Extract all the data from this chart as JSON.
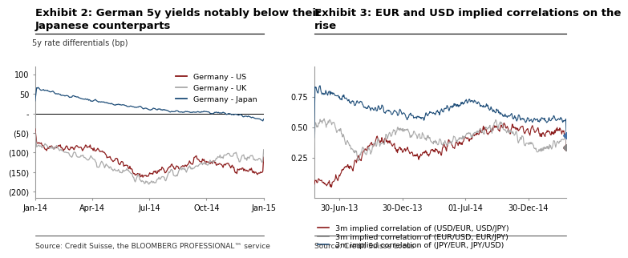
{
  "chart1": {
    "title_line1": "Exhibit 2: German 5y yields notably below their",
    "title_line2": "Japanese counterparts",
    "ylabel": "5y rate differentials (bp)",
    "source": "Source: Credit Suisse, the BLOOMBERG PROFESSIONAL™ service",
    "xtick_labels": [
      "Jan-14",
      "Apr-14",
      "Jul-14",
      "Oct-14",
      "Jan-15"
    ],
    "ytick_labels": [
      "(200)",
      "(150)",
      "(100)",
      "(50)",
      "-",
      "50",
      "100"
    ],
    "ytick_values": [
      -200,
      -150,
      -100,
      -50,
      0,
      50,
      100
    ],
    "ylim": [
      -215,
      120
    ],
    "series_colors": [
      "#8B1A1A",
      "#A9A9A9",
      "#1F4E79"
    ],
    "legend_labels": [
      "Germany - US",
      "Germany - UK",
      "Germany - Japan"
    ]
  },
  "chart2": {
    "title_line1": "Exhibit 3: EUR and USD implied correlations on the",
    "title_line2": "rise",
    "source": "Source: Credit Suisse Locus",
    "xtick_labels": [
      "30-Jun-13",
      "30-Dec-13",
      "01-Jul-14",
      "30-Dec-14"
    ],
    "ytick_values": [
      0.25,
      0.5,
      0.75
    ],
    "ylim": [
      -0.08,
      1.0
    ],
    "series_colors": [
      "#8B1A1A",
      "#A9A9A9",
      "#1F4E79"
    ],
    "legend_labels": [
      "3m implied correlation of (USD/EUR, USD/JPY)",
      "3m implied correlation of (EUR/USD, EUR/JPY)",
      "3m implied correlation of (JPY/EUR, JPY/USD)"
    ]
  },
  "bg_color": "#FFFFFF",
  "title_fontsize": 9.5,
  "label_fontsize": 7,
  "tick_fontsize": 7,
  "legend_fontsize": 6.8,
  "source_fontsize": 6.5
}
